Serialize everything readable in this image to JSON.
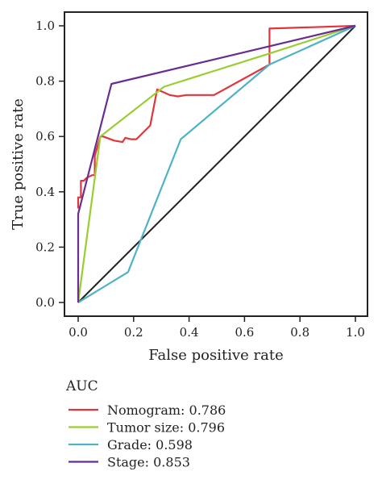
{
  "chart_data": {
    "type": "line",
    "xlabel": "False positive rate",
    "ylabel": "True positive rate",
    "xlim": [
      0,
      1
    ],
    "ylim": [
      0,
      1
    ],
    "x_ticks": [
      "0.0",
      "0.2",
      "0.4",
      "0.6",
      "0.8",
      "1.0"
    ],
    "y_ticks": [
      "0.0",
      "0.2",
      "0.4",
      "0.6",
      "0.8",
      "1.0"
    ],
    "grid": false,
    "legend_position": "bottom",
    "legend_title": "AUC",
    "reference_line": {
      "points": [
        [
          0,
          0
        ],
        [
          1,
          1
        ]
      ],
      "color": "#222222"
    },
    "series": [
      {
        "name": "Nomogram: 0.786",
        "color": "#e0353b",
        "points": [
          [
            0,
            0.34
          ],
          [
            0,
            0.38
          ],
          [
            0.01,
            0.38
          ],
          [
            0.01,
            0.44
          ],
          [
            0.02,
            0.44
          ],
          [
            0.03,
            0.45
          ],
          [
            0.05,
            0.46
          ],
          [
            0.06,
            0.46
          ],
          [
            0.06,
            0.53
          ],
          [
            0.08,
            0.6
          ],
          [
            0.09,
            0.6
          ],
          [
            0.13,
            0.585
          ],
          [
            0.16,
            0.58
          ],
          [
            0.17,
            0.595
          ],
          [
            0.19,
            0.59
          ],
          [
            0.21,
            0.59
          ],
          [
            0.26,
            0.64
          ],
          [
            0.26,
            0.64
          ],
          [
            0.285,
            0.77
          ],
          [
            0.33,
            0.75
          ],
          [
            0.36,
            0.745
          ],
          [
            0.39,
            0.75
          ],
          [
            0.49,
            0.75
          ],
          [
            0.69,
            0.86
          ],
          [
            0.69,
            0.99
          ],
          [
            1.0,
            1.0
          ]
        ]
      },
      {
        "name": "Tumor size: 0.796",
        "color": "#9acd32",
        "points": [
          [
            0,
            0
          ],
          [
            0.08,
            0.6
          ],
          [
            0.31,
            0.78
          ],
          [
            0.69,
            0.9
          ],
          [
            1.0,
            1.0
          ]
        ]
      },
      {
        "name": "Grade: 0.598",
        "color": "#4fb3c8",
        "points": [
          [
            0,
            0
          ],
          [
            0.18,
            0.11
          ],
          [
            0.37,
            0.59
          ],
          [
            0.69,
            0.86
          ],
          [
            1.0,
            1.0
          ]
        ]
      },
      {
        "name": "Stage: 0.853",
        "color": "#6a2c91",
        "points": [
          [
            0,
            0
          ],
          [
            0,
            0.32
          ],
          [
            0.12,
            0.79
          ],
          [
            1.0,
            1.0
          ]
        ]
      }
    ]
  }
}
